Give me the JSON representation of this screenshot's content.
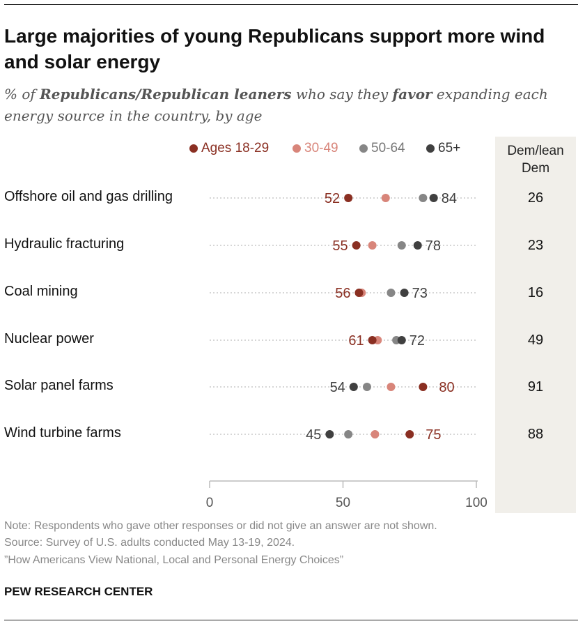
{
  "title": "Large majorities of young Republicans support more wind and solar energy",
  "subtitle_parts": [
    "% of ",
    "Republicans/Republican leaners",
    " who say they ",
    "favor",
    " expanding each energy source in the country, by age"
  ],
  "chart_data": {
    "type": "dot",
    "categories": [
      "Offshore oil and gas drilling",
      "Hydraulic fracturing",
      "Coal mining",
      "Nuclear power",
      "Solar panel farms",
      "Wind turbine farms"
    ],
    "series": [
      {
        "name": "Ages 18-29",
        "color": "#8a2f22",
        "values": [
          52,
          55,
          56,
          61,
          80,
          75
        ]
      },
      {
        "name": "30-49",
        "color": "#d8857a",
        "values": [
          66,
          61,
          57,
          63,
          68,
          62
        ]
      },
      {
        "name": "50-64",
        "color": "#868686",
        "values": [
          80,
          72,
          68,
          70,
          59,
          52
        ]
      },
      {
        "name": "65+",
        "color": "#404040",
        "values": [
          84,
          78,
          73,
          72,
          54,
          45
        ]
      }
    ],
    "xlim": [
      0,
      100
    ],
    "xticks": [
      "0",
      "50",
      "100"
    ],
    "data_labels": [
      {
        "low": "52",
        "high": "84",
        "low_series": 0,
        "high_series": 3
      },
      {
        "low": "55",
        "high": "78",
        "low_series": 0,
        "high_series": 3
      },
      {
        "low": "56",
        "high": "73",
        "low_series": 0,
        "high_series": 3
      },
      {
        "low": "61",
        "high": "72",
        "low_series": 0,
        "high_series": 3
      },
      {
        "low": "54",
        "high": "80",
        "low_series": 3,
        "high_series": 0
      },
      {
        "low": "45",
        "high": "75",
        "low_series": 3,
        "high_series": 0
      }
    ],
    "dem_header": [
      "Dem/lean",
      "Dem"
    ],
    "dem_values": [
      "26",
      "23",
      "16",
      "49",
      "91",
      "88"
    ]
  },
  "footer": {
    "note": "Note: Respondents who gave other responses or did not give an answer are not shown.",
    "source": "Source: Survey of U.S. adults conducted May 13-19, 2024.",
    "report": "”How Americans View National, Local and Personal Energy Choices”",
    "brand": "PEW RESEARCH CENTER"
  }
}
